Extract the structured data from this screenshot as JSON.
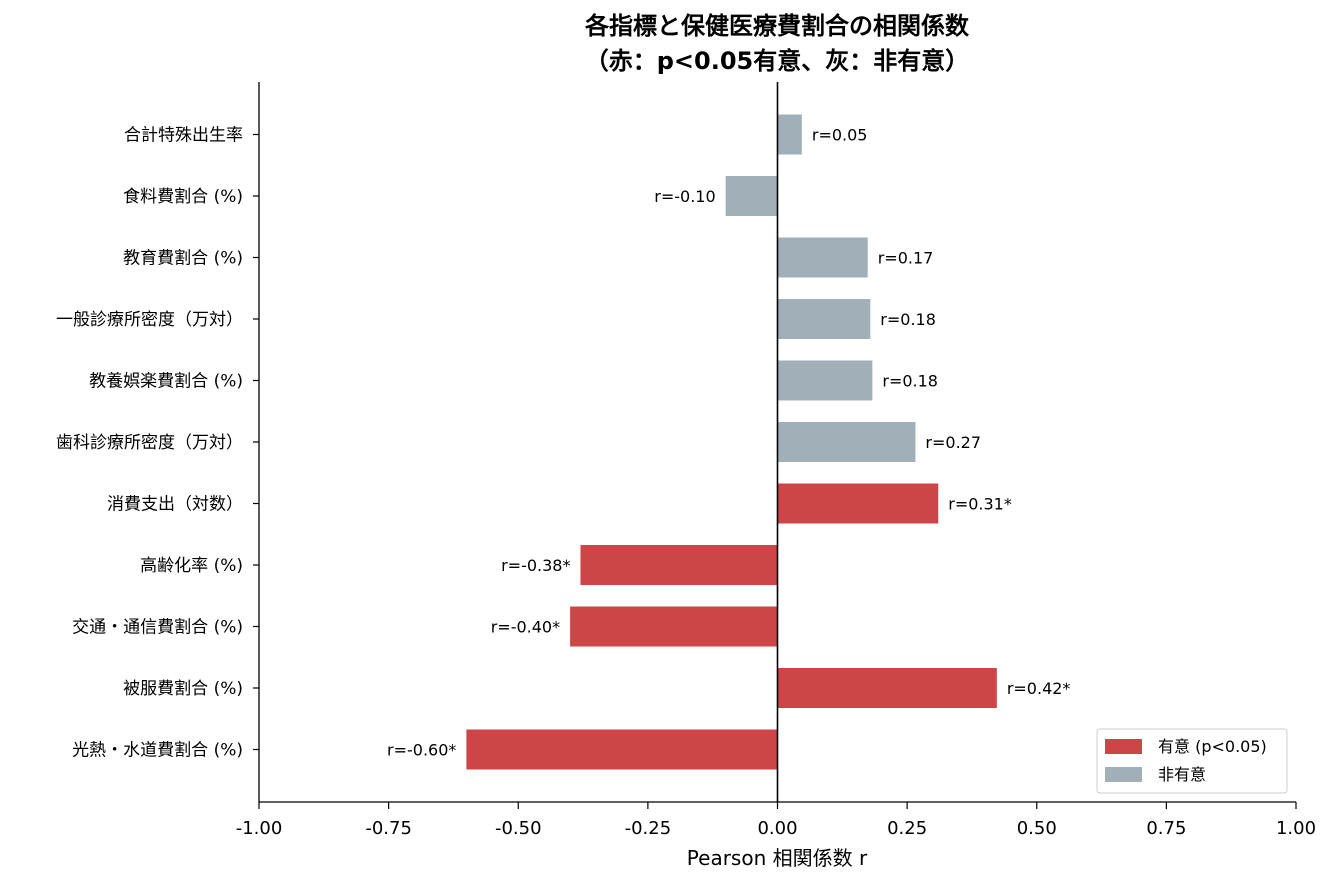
{
  "chart_data": {
    "type": "bar",
    "orientation": "horizontal",
    "title_line1": "各指標と保健医療費割合の相関係数",
    "title_line2": "（赤：p<0.05有意、灰：非有意）",
    "xlabel": "Pearson 相関係数 r",
    "ylabel": "",
    "xlim": [
      -1.0,
      1.0
    ],
    "xticks": [
      -1.0,
      -0.75,
      -0.5,
      -0.25,
      0.0,
      0.25,
      0.5,
      0.75,
      1.0
    ],
    "xtick_labels": [
      "-1.00",
      "-0.75",
      "-0.50",
      "-0.25",
      "0.00",
      "0.25",
      "0.50",
      "0.75",
      "1.00"
    ],
    "grid": false,
    "categories": [
      "合計特殊出生率",
      "食料費割合 (%)",
      "教育費割合 (%)",
      "一般診療所密度（万対）",
      "教養娯楽費割合 (%)",
      "歯科診療所密度（万対）",
      "消費支出（対数）",
      "高齢化率 (%)",
      "交通・通信費割合 (%)",
      "被服費割合 (%)",
      "光熱・水道費割合 (%)"
    ],
    "values": [
      0.047,
      -0.1,
      0.174,
      0.179,
      0.183,
      0.266,
      0.31,
      -0.38,
      -0.4,
      0.423,
      -0.6
    ],
    "value_labels": [
      "r=0.05",
      "r=-0.10",
      "r=0.17",
      "r=0.18",
      "r=0.18",
      "r=0.27",
      "r=0.31*",
      "r=-0.38*",
      "r=-0.40*",
      "r=0.42*",
      "r=-0.60*"
    ],
    "significant": [
      false,
      false,
      false,
      false,
      false,
      false,
      true,
      true,
      true,
      true,
      true
    ],
    "colors": {
      "significant": "#cd4546",
      "nonsignificant": "#a1b0b8"
    },
    "legend": {
      "placement": "lower-right",
      "entries": [
        {
          "label": "有意 (p<0.05)",
          "color": "#cd4546"
        },
        {
          "label": "非有意",
          "color": "#a1b0b8"
        }
      ]
    }
  }
}
